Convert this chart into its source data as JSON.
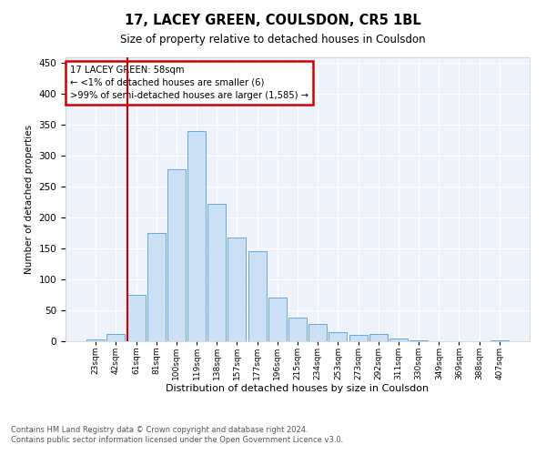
{
  "title": "17, LACEY GREEN, COULSDON, CR5 1BL",
  "subtitle": "Size of property relative to detached houses in Coulsdon",
  "xlabel": "Distribution of detached houses by size in Coulsdon",
  "ylabel": "Number of detached properties",
  "bar_labels": [
    "23sqm",
    "42sqm",
    "61sqm",
    "81sqm",
    "100sqm",
    "119sqm",
    "138sqm",
    "157sqm",
    "177sqm",
    "196sqm",
    "215sqm",
    "234sqm",
    "253sqm",
    "273sqm",
    "292sqm",
    "311sqm",
    "330sqm",
    "349sqm",
    "369sqm",
    "388sqm",
    "407sqm"
  ],
  "bar_values": [
    3,
    12,
    75,
    175,
    278,
    340,
    223,
    168,
    145,
    70,
    38,
    28,
    15,
    10,
    12,
    5,
    1,
    0,
    0,
    0,
    1
  ],
  "bar_color": "#cce0f5",
  "bar_edge_color": "#6aaad4",
  "property_label": "17 LACEY GREEN: 58sqm",
  "annotation_line1": "← <1% of detached houses are smaller (6)",
  "annotation_line2": ">99% of semi-detached houses are larger (1,585) →",
  "vline_color": "#cc0000",
  "annotation_box_color": "#cc0000",
  "footer_line1": "Contains HM Land Registry data © Crown copyright and database right 2024.",
  "footer_line2": "Contains public sector information licensed under the Open Government Licence v3.0.",
  "ylim": [
    0,
    460
  ],
  "plot_background": "#eef3fb"
}
